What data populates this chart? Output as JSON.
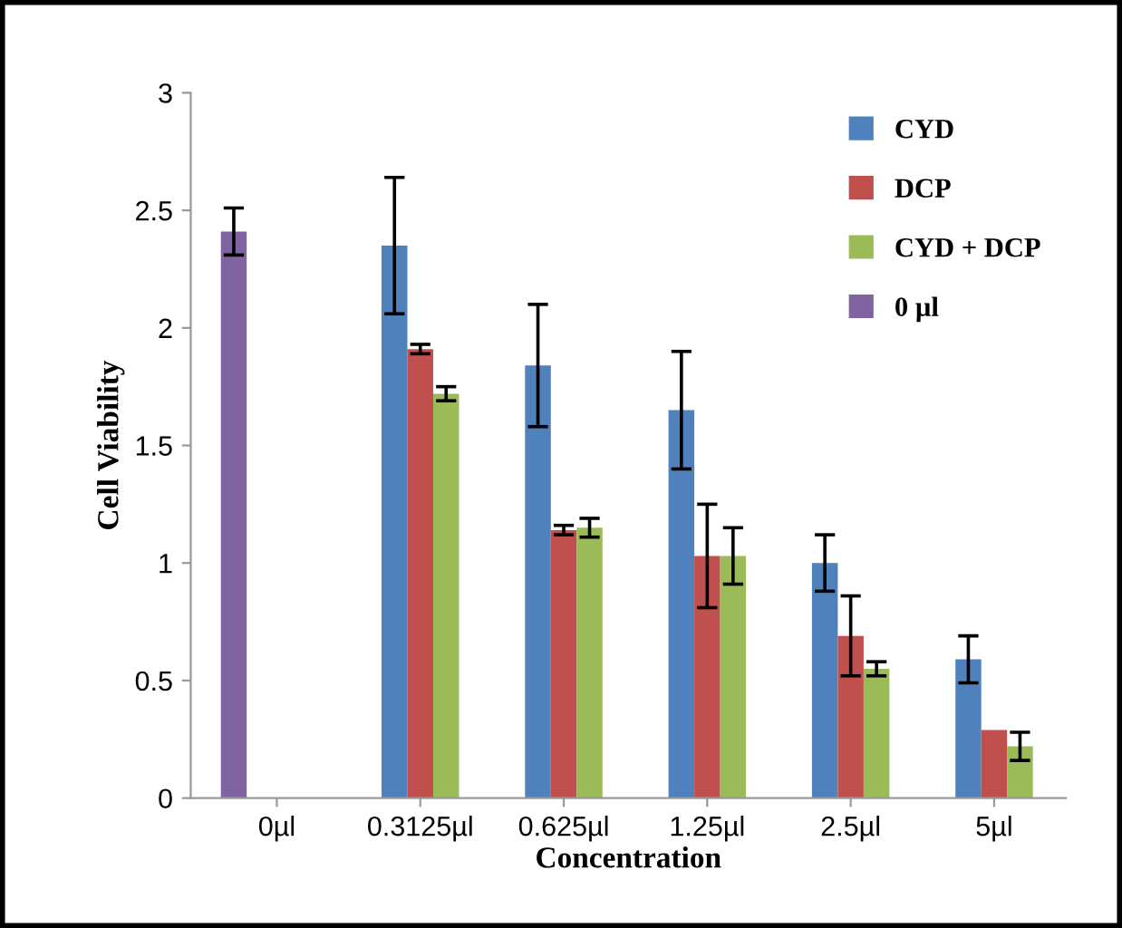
{
  "chart_data": {
    "type": "bar",
    "xlabel": "Concentration",
    "ylabel": "Cell Viability",
    "categories": [
      "0µl",
      "0.3125µl",
      "0.625µl",
      "1.25µl",
      "2.5µl",
      "5µl"
    ],
    "series": [
      {
        "name": "CYD",
        "color": "#4f81bd",
        "values": [
          null,
          2.35,
          1.84,
          1.65,
          1.0,
          0.59
        ],
        "errors": [
          null,
          0.29,
          0.26,
          0.25,
          0.12,
          0.1
        ]
      },
      {
        "name": "DCP",
        "color": "#c0504d",
        "values": [
          null,
          1.91,
          1.14,
          1.03,
          0.69,
          0.29
        ],
        "errors": [
          null,
          0.02,
          0.02,
          0.22,
          0.17,
          null
        ]
      },
      {
        "name": "CYD + DCP",
        "color": "#9bbb59",
        "values": [
          null,
          1.72,
          1.15,
          1.03,
          0.55,
          0.22
        ],
        "errors": [
          null,
          0.03,
          0.04,
          0.12,
          0.03,
          0.06
        ]
      },
      {
        "name": "0 µl",
        "color": "#8064a2",
        "values": [
          2.41,
          null,
          null,
          null,
          null,
          null
        ],
        "errors": [
          0.1,
          null,
          null,
          null,
          null,
          null
        ]
      }
    ],
    "ylim": [
      0,
      3
    ],
    "yticks": [
      0,
      0.5,
      1,
      1.5,
      2,
      2.5,
      3
    ],
    "grid": false,
    "legend": "top right"
  }
}
